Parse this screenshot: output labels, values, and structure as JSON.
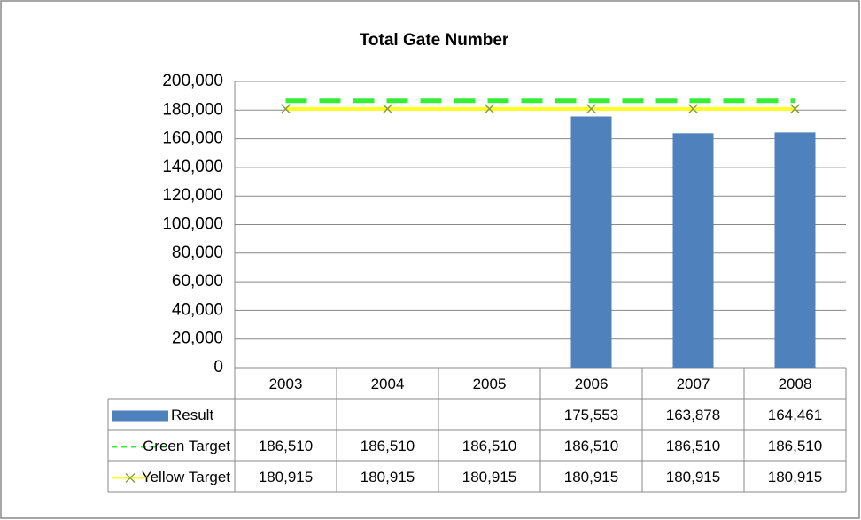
{
  "chart_data": {
    "type": "bar",
    "title": "Total Gate Number",
    "categories": [
      "2003",
      "2004",
      "2005",
      "2006",
      "2007",
      "2008"
    ],
    "series": [
      {
        "name": "Result",
        "type": "bar",
        "color": "#4f81bd",
        "values": [
          null,
          null,
          null,
          175553,
          163878,
          164461
        ],
        "value_labels": [
          null,
          null,
          null,
          "175,553",
          "163,878",
          "164,461"
        ]
      },
      {
        "name": "Green Target",
        "type": "line",
        "dash": true,
        "color": "#33ee33",
        "values": [
          186510,
          186510,
          186510,
          186510,
          186510,
          186510
        ],
        "value_labels": [
          "186,510",
          "186,510",
          "186,510",
          "186,510",
          "186,510",
          "186,510"
        ]
      },
      {
        "name": "Yellow Target",
        "type": "line",
        "marker": "x",
        "color": "#ffff22",
        "marker_color": "#8aa040",
        "values": [
          180915,
          180915,
          180915,
          180915,
          180915,
          180915
        ],
        "value_labels": [
          "180,915",
          "180,915",
          "180,915",
          "180,915",
          "180,915",
          "180,915"
        ]
      }
    ],
    "ylim": [
      0,
      200000
    ],
    "yticks": [
      0,
      {
        "value": 20000,
        "label": "20,000"
      },
      {
        "value": 40000,
        "label": "40,000"
      },
      {
        "value": 60000,
        "label": "60,000"
      },
      {
        "value": 80000,
        "label": "80,000"
      },
      {
        "value": 100000,
        "label": "100,000"
      },
      {
        "value": 120000,
        "label": "120,000"
      },
      {
        "value": 140000,
        "label": "140,000"
      },
      {
        "value": 160000,
        "label": "160,000"
      },
      {
        "value": 180000,
        "label": "180,000"
      },
      {
        "value": 200000,
        "label": "200,000"
      }
    ],
    "grid": true
  }
}
